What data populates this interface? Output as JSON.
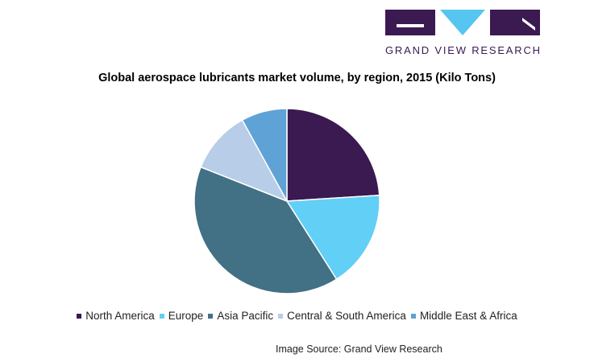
{
  "brand": {
    "name": "GRAND VIEW RESEARCH",
    "colors": {
      "dark": "#3b1951",
      "light": "#56c5f0"
    }
  },
  "source_text": "Image Source: Grand View Research",
  "chart_data": {
    "type": "pie",
    "title": "Global aerospace lubricants market volume, by region, 2015 (Kilo Tons)",
    "categories": [
      "North America",
      "Europe",
      "Asia Pacific",
      "Central & South America",
      "Middle East & Africa"
    ],
    "values": [
      24,
      17,
      40,
      11,
      8
    ],
    "colors": [
      "#3b1951",
      "#62cff6",
      "#427084",
      "#b7cde8",
      "#5fa2d6"
    ],
    "legend": "bottom",
    "start_angle_deg": 0,
    "direction": "clockwise"
  }
}
